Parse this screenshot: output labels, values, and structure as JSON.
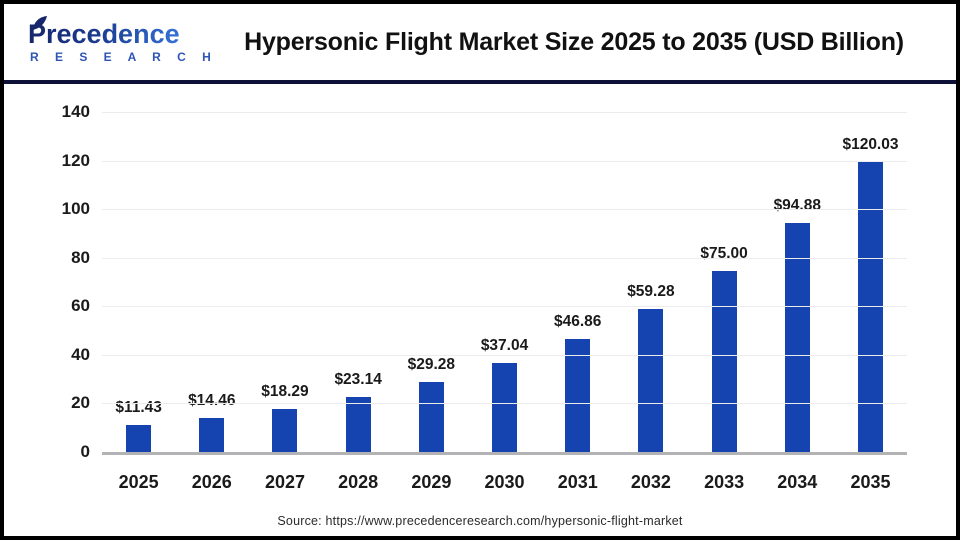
{
  "header": {
    "title": "Hypersonic Flight Market Size 2025 to 2035 (USD Billion)",
    "logo": {
      "brand": "Precedence",
      "sub": "R E S E A R C H"
    }
  },
  "footer": {
    "source": "Source: https://www.precedenceresearch.com/hypersonic-flight-market"
  },
  "colors": {
    "bar": "#1544b0",
    "divider": "#0e1138",
    "gridline": "#ececec",
    "axis_line": "#b3b3b6",
    "logo_navy": "#16266b",
    "logo_blue": "#3472d6"
  },
  "chart_data": {
    "type": "bar",
    "title": "Hypersonic Flight Market Size 2025 to 2035 (USD Billion)",
    "categories": [
      "2025",
      "2026",
      "2027",
      "2028",
      "2029",
      "2030",
      "2031",
      "2032",
      "2033",
      "2034",
      "2035"
    ],
    "values": [
      11.43,
      14.46,
      18.29,
      23.14,
      29.28,
      37.04,
      46.86,
      59.28,
      75.0,
      94.88,
      120.03
    ],
    "value_labels": [
      "$11.43",
      "$14.46",
      "$18.29",
      "$23.14",
      "$29.28",
      "$37.04",
      "$46.86",
      "$59.28",
      "$75.00",
      "$94.88",
      "$120.03"
    ],
    "xlabel": "",
    "ylabel": "",
    "ylim": [
      0,
      140
    ],
    "yticks": [
      0,
      20,
      40,
      60,
      80,
      100,
      120,
      140
    ],
    "grid": "horizontal-only",
    "legend_position": "none",
    "bar_color": "#1544b0"
  }
}
